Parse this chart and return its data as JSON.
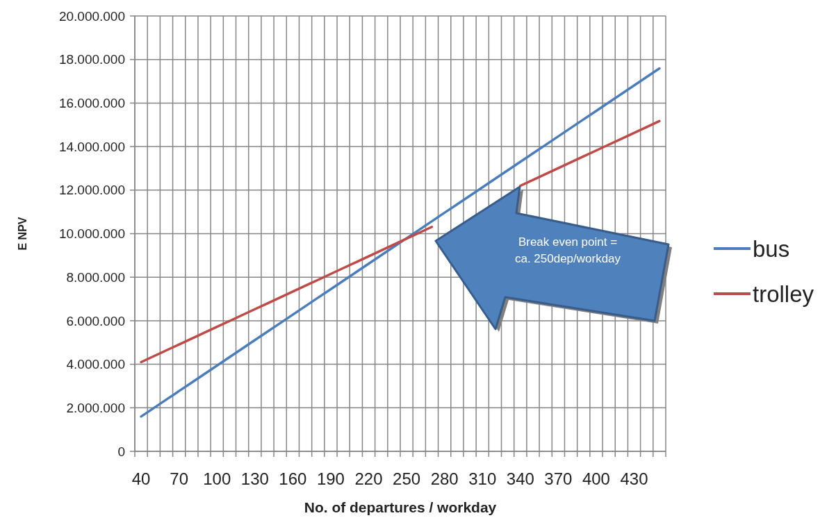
{
  "chart_data": {
    "type": "line",
    "xlabel": "No. of departures / workday",
    "ylabel": "E NPV",
    "categories": [
      "40",
      null,
      null,
      "70",
      null,
      null,
      "100",
      null,
      null,
      "130",
      null,
      null,
      "160",
      null,
      null,
      "190",
      null,
      null,
      "220",
      null,
      null,
      "250",
      null,
      null,
      "280",
      null,
      null,
      "310",
      null,
      null,
      "340",
      null,
      null,
      "370",
      null,
      null,
      "400",
      null,
      null,
      "430",
      null,
      null
    ],
    "series": [
      {
        "name": "bus",
        "color": "#4a7ebb",
        "values": [
          1600000,
          1990000,
          2380000,
          2770000,
          3160000,
          3550000,
          3940000,
          4330000,
          4720000,
          5110000,
          5500000,
          5890000,
          6280000,
          6670000,
          7060000,
          7450000,
          7840000,
          8230000,
          8620000,
          9010000,
          9400000,
          9790000,
          10180000,
          10570000,
          10960000,
          11350000,
          11740000,
          12130000,
          12520000,
          12910000,
          13300000,
          13690000,
          14080000,
          14470000,
          14860000,
          15250000,
          15640000,
          16030000,
          16420000,
          16810000,
          17200000,
          17590000
        ]
      },
      {
        "name": "trolley",
        "color": "#be4b48",
        "values": [
          4100000,
          4370000,
          4640000,
          4910000,
          5180000,
          5450000,
          5720000,
          5990000,
          6260000,
          6530000,
          6800000,
          7070000,
          7340000,
          7610000,
          7880000,
          8150000,
          8420000,
          8690000,
          8960000,
          9230000,
          9500000,
          9770000,
          10040000,
          10310000,
          null,
          null,
          null,
          null,
          null,
          null,
          12200000,
          12470000,
          12740000,
          13010000,
          13280000,
          13550000,
          13820000,
          14090000,
          14360000,
          14630000,
          14900000,
          15170000
        ]
      }
    ],
    "ylim": [
      0,
      20000000
    ],
    "yticks": [
      {
        "value": 0,
        "label": "0"
      },
      {
        "value": 2000000,
        "label": "2.000.000"
      },
      {
        "value": 4000000,
        "label": "4.000.000"
      },
      {
        "value": 6000000,
        "label": "6.000.000"
      },
      {
        "value": 8000000,
        "label": "8.000.000"
      },
      {
        "value": 10000000,
        "label": "10.000.000"
      },
      {
        "value": 12000000,
        "label": "12.000.000"
      },
      {
        "value": 14000000,
        "label": "14.000.000"
      },
      {
        "value": 16000000,
        "label": "16.000.000"
      },
      {
        "value": 18000000,
        "label": "18.000.000"
      },
      {
        "value": 20000000,
        "label": "20.000.000"
      }
    ],
    "grid": true,
    "legend": "right",
    "marker": "none",
    "line_style": "solid",
    "annotations": [
      "Break even point = ca. 250dep/workday"
    ]
  }
}
